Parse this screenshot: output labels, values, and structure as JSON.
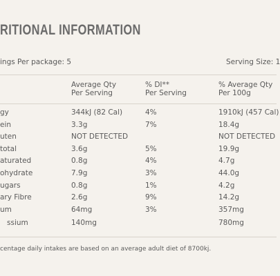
{
  "header": {
    "title": "RITIONAL INFORMATION"
  },
  "summary": {
    "servings": "ings Per package: 5",
    "serving_size": "Serving Size: 1"
  },
  "table": {
    "headers": [
      [
        "Average Qty",
        "Per Serving"
      ],
      [
        "% DI**",
        "Per Serving"
      ],
      [
        "% Average Qty",
        "Per 100g"
      ]
    ],
    "rows": [
      [
        "gy",
        "344kJ (82 Cal)",
        "4%",
        "1910kJ (457 Cal)"
      ],
      [
        "ein",
        "3.3g",
        "7%",
        "18.4g"
      ],
      [
        "uten",
        "NOT DETECTED",
        "",
        "NOT DETECTED"
      ],
      [
        "total",
        "3.6g",
        "5%",
        "19.9g"
      ],
      [
        "aturated",
        "0.8g",
        "4%",
        "4.7g"
      ],
      [
        "ohydrate",
        "7.9g",
        "3%",
        "44.0g"
      ],
      [
        "ugars",
        "0.8g",
        "1%",
        "4.2g"
      ],
      [
        "ary Fibre",
        "2.6g",
        "9%",
        "14.2g"
      ],
      [
        "um",
        "64mg",
        "3%",
        "357mg"
      ],
      [
        "ssium",
        "140mg",
        "",
        "780mg"
      ]
    ]
  },
  "footnote": "centage daily intakes are based on an average adult diet of 8700kj."
}
